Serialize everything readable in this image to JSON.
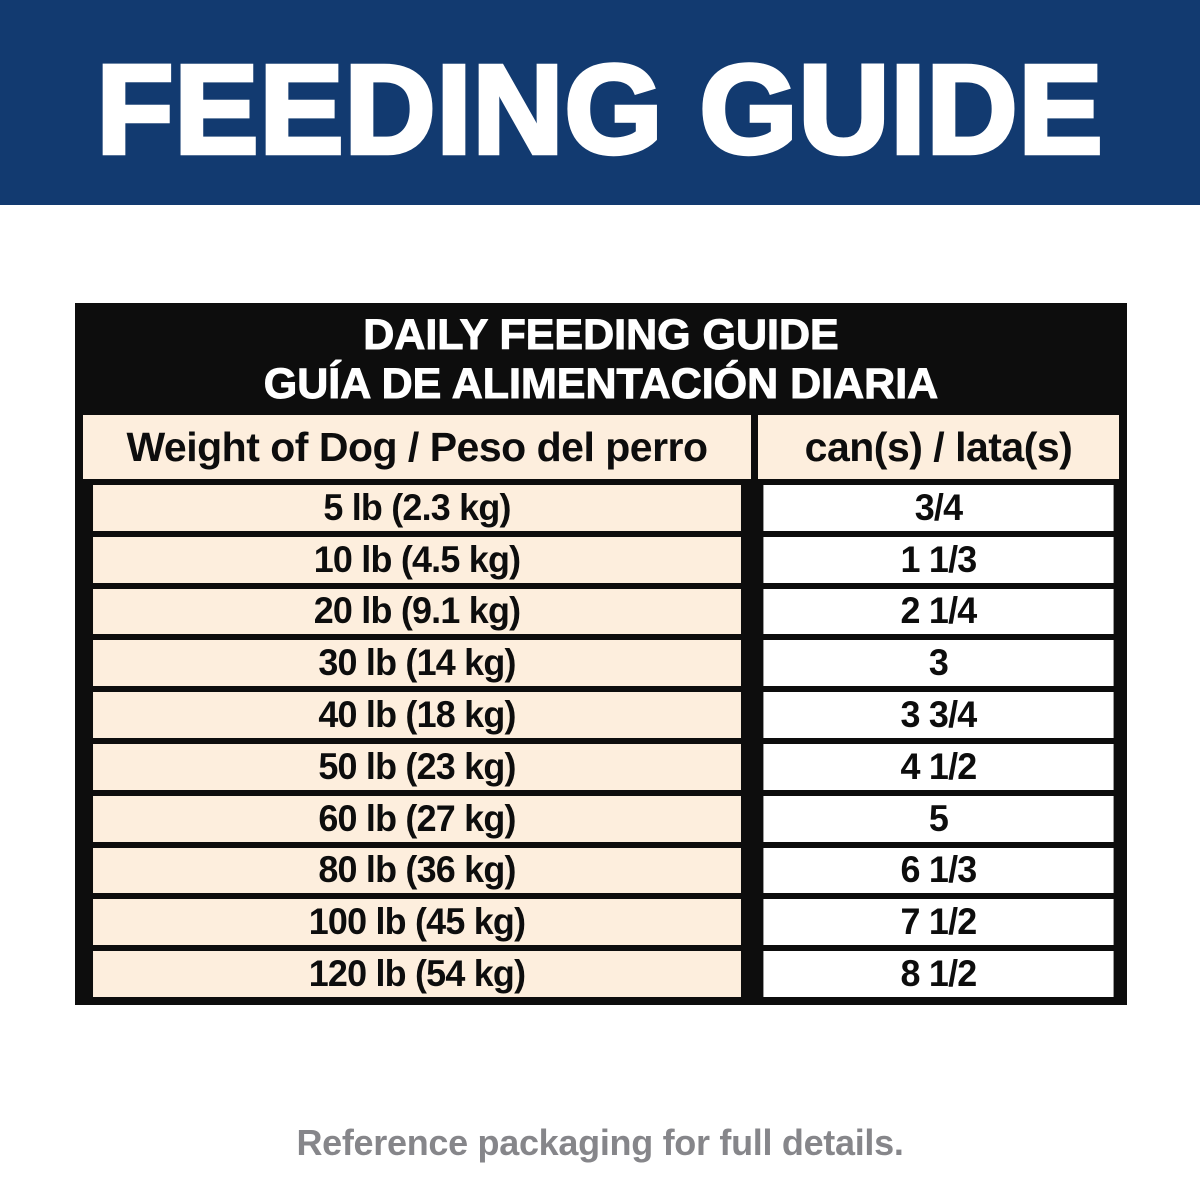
{
  "banner": {
    "title": "FEEDING GUIDE"
  },
  "table": {
    "title_line1": "DAILY FEEDING GUIDE",
    "title_line2": "GUÍA DE ALIMENTACIÓN DIARIA",
    "columns": {
      "weight": "Weight of Dog / Peso del perro",
      "cans": "can(s) / lata(s)"
    },
    "rows": [
      {
        "weight": "5 lb (2.3 kg)",
        "cans": "3/4"
      },
      {
        "weight": "10 lb (4.5 kg)",
        "cans": "1 1/3"
      },
      {
        "weight": "20 lb (9.1 kg)",
        "cans": "2 1/4"
      },
      {
        "weight": "30 lb (14 kg)",
        "cans": "3"
      },
      {
        "weight": "40 lb (18 kg)",
        "cans": "3 3/4"
      },
      {
        "weight": "50 lb (23 kg)",
        "cans": "4 1/2"
      },
      {
        "weight": "60 lb (27 kg)",
        "cans": "5"
      },
      {
        "weight": "80 lb (36 kg)",
        "cans": "6 1/3"
      },
      {
        "weight": "100 lb (45 kg)",
        "cans": "7 1/2"
      },
      {
        "weight": "120 lb (54 kg)",
        "cans": "8 1/2"
      }
    ]
  },
  "footer": {
    "note": "Reference packaging for full details."
  },
  "colors": {
    "banner_blue": "#123a70",
    "cream": "#fdeedd",
    "line_black": "#0d0d0d",
    "footer_gray": "#86868a"
  }
}
